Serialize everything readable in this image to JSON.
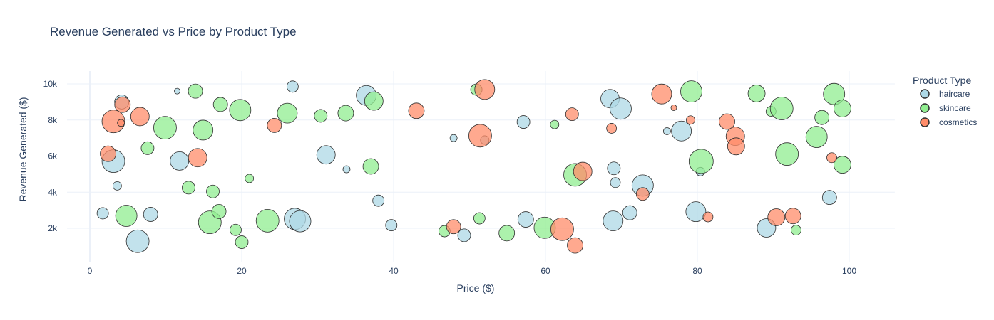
{
  "chart_data": {
    "type": "scatter",
    "title": "Revenue Generated vs Price by Product Type",
    "xlabel": "Price ($)",
    "ylabel": "Revenue Generated ($)",
    "xlim": [
      -3,
      106
    ],
    "ylim": [
      300,
      10700
    ],
    "x_ticks": [
      0,
      20,
      40,
      60,
      80,
      100
    ],
    "x_tick_labels": [
      "0",
      "20",
      "40",
      "60",
      "80",
      "100"
    ],
    "y_ticks": [
      2000,
      4000,
      6000,
      8000,
      10000
    ],
    "y_tick_labels": [
      "2k",
      "4k",
      "6k",
      "8k",
      "10k"
    ],
    "grid": true,
    "legend": {
      "title": "Product Type",
      "placement": "top-right"
    },
    "series": [
      {
        "name": "haircare",
        "color": "#add8e6",
        "points": [
          {
            "x": 1.7,
            "y": 2830,
            "s": 6
          },
          {
            "x": 3.1,
            "y": 5720,
            "s": 14
          },
          {
            "x": 3.6,
            "y": 4350,
            "s": 4
          },
          {
            "x": 4.2,
            "y": 9000,
            "s": 8
          },
          {
            "x": 6.3,
            "y": 1280,
            "s": 14
          },
          {
            "x": 8.0,
            "y": 2770,
            "s": 8
          },
          {
            "x": 11.5,
            "y": 9600,
            "s": 2
          },
          {
            "x": 11.8,
            "y": 5730,
            "s": 11
          },
          {
            "x": 26.7,
            "y": 9850,
            "s": 6
          },
          {
            "x": 27.0,
            "y": 2520,
            "s": 13
          },
          {
            "x": 27.7,
            "y": 2390,
            "s": 13
          },
          {
            "x": 31.1,
            "y": 6070,
            "s": 11
          },
          {
            "x": 33.8,
            "y": 5270,
            "s": 3
          },
          {
            "x": 36.4,
            "y": 9360,
            "s": 12
          },
          {
            "x": 38.0,
            "y": 3530,
            "s": 6
          },
          {
            "x": 39.7,
            "y": 2170,
            "s": 6
          },
          {
            "x": 47.9,
            "y": 7000,
            "s": 3
          },
          {
            "x": 49.3,
            "y": 1610,
            "s": 7
          },
          {
            "x": 52.0,
            "y": 6890,
            "s": 4
          },
          {
            "x": 57.1,
            "y": 7890,
            "s": 7
          },
          {
            "x": 57.4,
            "y": 2490,
            "s": 9
          },
          {
            "x": 68.5,
            "y": 9180,
            "s": 11
          },
          {
            "x": 68.9,
            "y": 2410,
            "s": 12
          },
          {
            "x": 69.0,
            "y": 5320,
            "s": 7
          },
          {
            "x": 69.2,
            "y": 4530,
            "s": 5
          },
          {
            "x": 69.9,
            "y": 8630,
            "s": 13
          },
          {
            "x": 71.1,
            "y": 2860,
            "s": 8
          },
          {
            "x": 72.8,
            "y": 4370,
            "s": 13
          },
          {
            "x": 76.0,
            "y": 7380,
            "s": 3
          },
          {
            "x": 77.9,
            "y": 7390,
            "s": 12
          },
          {
            "x": 79.8,
            "y": 2920,
            "s": 12
          },
          {
            "x": 80.4,
            "y": 5140,
            "s": 4
          },
          {
            "x": 89.1,
            "y": 2020,
            "s": 11
          },
          {
            "x": 97.4,
            "y": 3710,
            "s": 8
          }
        ]
      },
      {
        "name": "skincare",
        "color": "#90ee90",
        "points": [
          {
            "x": 4.8,
            "y": 2690,
            "s": 13
          },
          {
            "x": 7.6,
            "y": 6440,
            "s": 7
          },
          {
            "x": 9.9,
            "y": 7570,
            "s": 14
          },
          {
            "x": 13.0,
            "y": 4250,
            "s": 7
          },
          {
            "x": 13.9,
            "y": 9600,
            "s": 8
          },
          {
            "x": 14.9,
            "y": 7440,
            "s": 12
          },
          {
            "x": 15.8,
            "y": 2330,
            "s": 14
          },
          {
            "x": 16.2,
            "y": 4040,
            "s": 7
          },
          {
            "x": 17.0,
            "y": 2930,
            "s": 8
          },
          {
            "x": 17.2,
            "y": 8860,
            "s": 8
          },
          {
            "x": 19.2,
            "y": 1910,
            "s": 6
          },
          {
            "x": 19.8,
            "y": 8550,
            "s": 13
          },
          {
            "x": 20.0,
            "y": 1230,
            "s": 7
          },
          {
            "x": 21.0,
            "y": 4760,
            "s": 4
          },
          {
            "x": 23.4,
            "y": 2420,
            "s": 14
          },
          {
            "x": 26.0,
            "y": 8380,
            "s": 12
          },
          {
            "x": 30.4,
            "y": 8230,
            "s": 7
          },
          {
            "x": 33.7,
            "y": 8380,
            "s": 9
          },
          {
            "x": 37.0,
            "y": 5430,
            "s": 9
          },
          {
            "x": 37.4,
            "y": 9050,
            "s": 11
          },
          {
            "x": 46.7,
            "y": 1840,
            "s": 6
          },
          {
            "x": 50.9,
            "y": 9680,
            "s": 6
          },
          {
            "x": 51.3,
            "y": 2550,
            "s": 6
          },
          {
            "x": 54.9,
            "y": 1730,
            "s": 9
          },
          {
            "x": 59.9,
            "y": 2030,
            "s": 13
          },
          {
            "x": 61.2,
            "y": 7750,
            "s": 4
          },
          {
            "x": 63.9,
            "y": 4960,
            "s": 14
          },
          {
            "x": 79.2,
            "y": 9580,
            "s": 13
          },
          {
            "x": 80.5,
            "y": 5710,
            "s": 15
          },
          {
            "x": 87.8,
            "y": 9470,
            "s": 10
          },
          {
            "x": 89.7,
            "y": 8480,
            "s": 5
          },
          {
            "x": 91.1,
            "y": 8640,
            "s": 14
          },
          {
            "x": 91.8,
            "y": 6110,
            "s": 14
          },
          {
            "x": 93.0,
            "y": 1900,
            "s": 5
          },
          {
            "x": 95.7,
            "y": 7060,
            "s": 13
          },
          {
            "x": 96.4,
            "y": 8140,
            "s": 8
          },
          {
            "x": 98.0,
            "y": 9440,
            "s": 13
          },
          {
            "x": 99.1,
            "y": 8640,
            "s": 10
          },
          {
            "x": 99.1,
            "y": 5520,
            "s": 10
          }
        ]
      },
      {
        "name": "cosmetics",
        "color": "#ff8c69",
        "points": [
          {
            "x": 2.4,
            "y": 6130,
            "s": 9
          },
          {
            "x": 3.1,
            "y": 7920,
            "s": 14
          },
          {
            "x": 4.1,
            "y": 7840,
            "s": 3
          },
          {
            "x": 4.3,
            "y": 8850,
            "s": 9
          },
          {
            "x": 6.6,
            "y": 8190,
            "s": 11
          },
          {
            "x": 14.2,
            "y": 5910,
            "s": 11
          },
          {
            "x": 24.3,
            "y": 7700,
            "s": 8
          },
          {
            "x": 43.0,
            "y": 8510,
            "s": 9
          },
          {
            "x": 47.9,
            "y": 2090,
            "s": 8
          },
          {
            "x": 51.4,
            "y": 7130,
            "s": 14
          },
          {
            "x": 52.0,
            "y": 9690,
            "s": 12
          },
          {
            "x": 62.2,
            "y": 1950,
            "s": 14
          },
          {
            "x": 63.5,
            "y": 8320,
            "s": 7
          },
          {
            "x": 63.9,
            "y": 1050,
            "s": 9
          },
          {
            "x": 64.9,
            "y": 5150,
            "s": 11
          },
          {
            "x": 68.7,
            "y": 7540,
            "s": 5
          },
          {
            "x": 72.8,
            "y": 3900,
            "s": 7
          },
          {
            "x": 75.3,
            "y": 9440,
            "s": 12
          },
          {
            "x": 76.9,
            "y": 8680,
            "s": 2
          },
          {
            "x": 79.1,
            "y": 8000,
            "s": 4
          },
          {
            "x": 81.4,
            "y": 2630,
            "s": 5
          },
          {
            "x": 83.9,
            "y": 7910,
            "s": 9
          },
          {
            "x": 85.0,
            "y": 7100,
            "s": 11
          },
          {
            "x": 85.1,
            "y": 6540,
            "s": 10
          },
          {
            "x": 90.4,
            "y": 2610,
            "s": 10
          },
          {
            "x": 92.6,
            "y": 2680,
            "s": 9
          },
          {
            "x": 97.7,
            "y": 5910,
            "s": 5
          }
        ]
      }
    ]
  }
}
